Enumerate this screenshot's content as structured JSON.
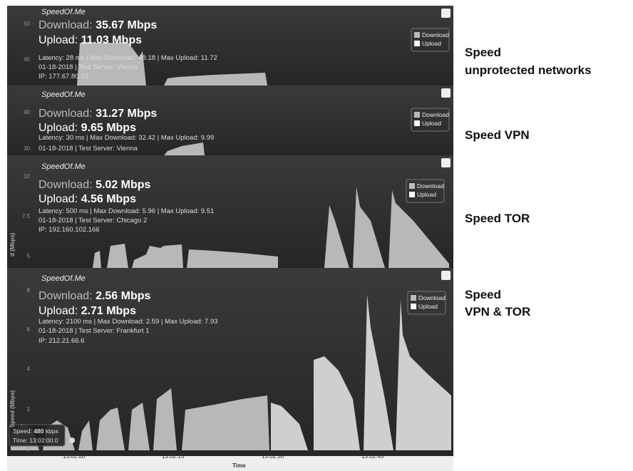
{
  "panels": [
    {
      "brand": "SpeedOf.Me",
      "download_label": "Download:",
      "download": "35.67 Mbps",
      "upload_label": "Upload:",
      "upload": "11.03 Mbps",
      "info": [
        "Latency: 28 ms | Max Download: 48.18 | Max Upload: 11.72",
        "01-18-2018 | Test Server: Vienna",
        "IP: 177.67.80.22"
      ],
      "yticks": [
        "50",
        "40"
      ],
      "legend": [
        "Download",
        "Upload"
      ],
      "caption": [
        "Speed",
        "unprotected networks"
      ]
    },
    {
      "brand": "SpeedOf.Me",
      "download_label": "Download:",
      "download": "31.27 Mbps",
      "upload_label": "Upload:",
      "upload": "9.65 Mbps",
      "info": [
        "Latency: 30 ms | Max Download: 32.42 | Max Upload: 9.99",
        "01-18-2018 | Test Server: Vienna"
      ],
      "yticks": [
        "40",
        "30"
      ],
      "legend": [
        "Download",
        "Upload"
      ],
      "caption": [
        "Speed VPN"
      ]
    },
    {
      "brand": "SpeedOf.Me",
      "download_label": "Download:",
      "download": "5.02 Mbps",
      "upload_label": "Upload:",
      "upload": "4.56 Mbps",
      "info": [
        "Latency: 500 ms | Max Download: 5.96 | Max Upload: 9.51",
        "01-18-2018 | Test Server: Chicago 2",
        "IP: 192.160.102.166"
      ],
      "yticks": [
        "10",
        "7.5",
        "5"
      ],
      "y_label": "d (Mbps)",
      "legend": [
        "Download",
        "Upload"
      ],
      "caption": [
        "Speed TOR"
      ]
    },
    {
      "brand": "SpeedOf.Me",
      "download_label": "Download:",
      "download": "2.56 Mbps",
      "upload_label": "Upload:",
      "upload": "2.71 Mbps",
      "info": [
        "Latency: 2100 ms | Max Download: 2.59 | Max Upload: 7.93",
        "01-18-2018 | Test Server: Frankfurt 1",
        "IP: 212.21.66.6"
      ],
      "yticks": [
        "8",
        "6",
        "4",
        "2",
        "0"
      ],
      "y_label": "Speed (Mbps)",
      "legend": [
        "Download",
        "Upload"
      ],
      "caption": [
        "Speed",
        "VPN & TOR"
      ],
      "xticks": [
        "13:02:00",
        "13:02:15",
        "13:02:30",
        "13:02:45"
      ],
      "x_label": "Time",
      "tooltip": {
        "speed_label": "Speed:",
        "speed_value": "480",
        "speed_unit": "kbps",
        "time": "Time: 13:02:00.0"
      }
    }
  ]
}
